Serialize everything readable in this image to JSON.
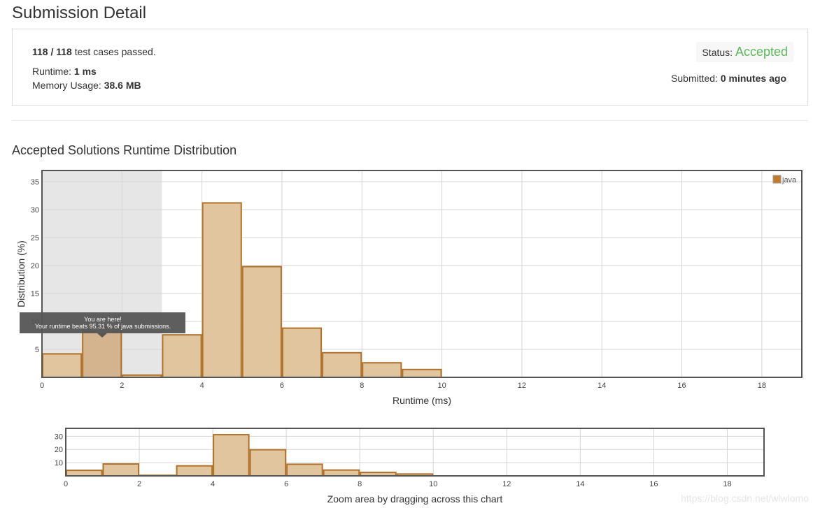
{
  "page": {
    "title": "Submission Detail",
    "summary": {
      "passed": "118 / 118",
      "passed_suffix": " test cases passed.",
      "runtime_label": "Runtime: ",
      "runtime_value": "1 ms",
      "memory_label": "Memory Usage: ",
      "memory_value": "38.6 MB",
      "status_label": "Status: ",
      "status_value": "Accepted",
      "status_color": "#5cb85c",
      "submitted_label": "Submitted: ",
      "submitted_value": "0 minutes ago"
    },
    "section_title": "Accepted Solutions Runtime Distribution",
    "tooltip": {
      "line1": "You are here!",
      "line2": "Your runtime beats 95.31 % of java submissions."
    },
    "watermark": "https://blog.csdn.net/wlwlomo"
  },
  "chart_data": [
    {
      "type": "bar",
      "series": [
        {
          "name": "java",
          "bins": [
            [
              0,
              1
            ],
            [
              1,
              2
            ],
            [
              2,
              3
            ],
            [
              3,
              4
            ],
            [
              4,
              5
            ],
            [
              5,
              6
            ],
            [
              6,
              7
            ],
            [
              7,
              8
            ],
            [
              8,
              9
            ],
            [
              9,
              10
            ]
          ],
          "values": [
            4.2,
            9.0,
            0.4,
            7.6,
            31.2,
            19.8,
            8.8,
            4.4,
            2.6,
            1.4
          ]
        }
      ],
      "xlabel": "Runtime (ms)",
      "ylabel": "Distribution (%)",
      "xlim": [
        0,
        19
      ],
      "ylim": [
        0,
        37
      ],
      "xticks": [
        "0",
        "2",
        "4",
        "6",
        "8",
        "10",
        "12",
        "14",
        "16",
        "18"
      ],
      "yticks": [
        "5",
        "10",
        "15",
        "20",
        "25",
        "30",
        "35"
      ],
      "highlight_range": [
        0,
        3
      ],
      "highlight_bin": 1,
      "legend": "top-right",
      "grid": true,
      "bar_fill": "#e0c59f",
      "bar_stroke": "#b0722a",
      "legend_color": "#c27a2c"
    },
    {
      "type": "bar",
      "series": [
        {
          "name": "java",
          "bins": [
            [
              0,
              1
            ],
            [
              1,
              2
            ],
            [
              2,
              3
            ],
            [
              3,
              4
            ],
            [
              4,
              5
            ],
            [
              5,
              6
            ],
            [
              6,
              7
            ],
            [
              7,
              8
            ],
            [
              8,
              9
            ],
            [
              9,
              10
            ]
          ],
          "values": [
            4.2,
            9.0,
            0.4,
            7.6,
            31.2,
            19.8,
            8.8,
            4.4,
            2.6,
            1.4
          ]
        }
      ],
      "xlabel": "Zoom area by dragging across this chart",
      "xlim": [
        0,
        19
      ],
      "ylim": [
        0,
        36
      ],
      "xticks": [
        "0",
        "2",
        "4",
        "6",
        "8",
        "10",
        "12",
        "14",
        "16",
        "18"
      ],
      "yticks": [
        "10",
        "20",
        "30"
      ],
      "grid": true
    }
  ]
}
